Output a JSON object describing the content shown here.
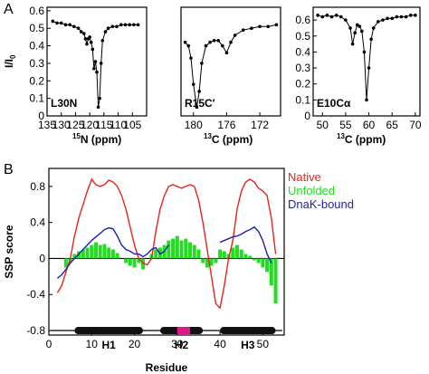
{
  "panels": {
    "a_letter": "A",
    "b_letter": "B"
  },
  "chart_data": [
    {
      "type": "scatter",
      "tag": "L30N",
      "xlabel": "15N (ppm)",
      "ylabel": "I/I0",
      "xlim": [
        135,
        100
      ],
      "ylim": [
        0,
        0.62
      ],
      "xticks": [
        105,
        110,
        115,
        120,
        125,
        130,
        135
      ],
      "xtick_labels": [
        "105",
        "110",
        "115",
        "120",
        "125",
        "130",
        "135"
      ],
      "yticks": [
        0,
        0.1,
        0.2,
        0.3,
        0.4,
        0.5,
        0.6
      ],
      "ytick_labels": [
        "0",
        "0.1",
        "0.2",
        "0.3",
        "0.4",
        "0.5",
        "0.6"
      ],
      "series": [
        {
          "x": [
            103,
            104.5,
            106,
            107.5,
            109,
            110.5,
            112,
            113.5,
            114.5,
            115.5,
            116,
            116.5,
            117,
            117.5,
            118,
            118.5,
            119,
            119.5,
            120,
            120.5,
            121,
            121.5,
            122,
            123,
            124,
            125.5,
            127,
            128.5,
            130,
            131.5,
            133
          ],
          "y": [
            0.52,
            0.52,
            0.52,
            0.52,
            0.52,
            0.51,
            0.51,
            0.5,
            0.48,
            0.43,
            0.3,
            0.1,
            0.05,
            0.25,
            0.31,
            0.27,
            0.38,
            0.42,
            0.45,
            0.44,
            0.41,
            0.44,
            0.47,
            0.48,
            0.5,
            0.51,
            0.52,
            0.52,
            0.53,
            0.53,
            0.54
          ]
        }
      ]
    },
    {
      "type": "scatter",
      "tag": "R15C′",
      "xlabel": "13C (ppm)",
      "ylabel": "",
      "xlim": [
        181.5,
        169.5
      ],
      "ylim": [
        0,
        0.62
      ],
      "xticks": [
        172,
        176,
        180
      ],
      "xtick_labels": [
        "172",
        "176",
        "180"
      ],
      "series": [
        {
          "x": [
            170,
            171,
            172,
            173,
            174,
            175,
            175.5,
            176,
            176.5,
            177,
            177.5,
            178,
            178.5,
            179,
            179.3,
            179.6,
            180,
            180.3,
            180.6,
            181
          ],
          "y": [
            0.52,
            0.51,
            0.51,
            0.5,
            0.49,
            0.46,
            0.42,
            0.36,
            0.4,
            0.43,
            0.43,
            0.42,
            0.4,
            0.3,
            0.14,
            0.05,
            0.18,
            0.33,
            0.4,
            0.42
          ]
        }
      ]
    },
    {
      "type": "scatter",
      "tag": "E10Cα",
      "xlabel": "13C (ppm)",
      "ylabel": "",
      "xlim": [
        48,
        71
      ],
      "ylim": [
        0,
        0.68
      ],
      "xticks": [
        50,
        55,
        60,
        65,
        70
      ],
      "xtick_labels": [
        "50",
        "55",
        "60",
        "65",
        "70"
      ],
      "yticks": [
        0,
        0.1,
        0.2,
        0.3,
        0.4,
        0.5,
        0.6
      ],
      "ytick_labels": [
        "0",
        "0.1",
        "0.2",
        "0.3",
        "0.4",
        "0.5",
        "0.6"
      ],
      "series": [
        {
          "x": [
            49,
            50,
            51,
            52,
            53,
            54,
            55,
            56,
            56.5,
            57,
            57.5,
            58,
            58.5,
            59,
            59.5,
            60,
            60.5,
            61,
            62,
            63,
            64,
            65,
            66,
            67,
            68,
            69,
            70
          ],
          "y": [
            0.63,
            0.62,
            0.63,
            0.62,
            0.63,
            0.62,
            0.6,
            0.55,
            0.45,
            0.52,
            0.57,
            0.56,
            0.53,
            0.4,
            0.1,
            0.3,
            0.48,
            0.55,
            0.59,
            0.6,
            0.61,
            0.61,
            0.62,
            0.62,
            0.62,
            0.63,
            0.63
          ]
        }
      ]
    },
    {
      "type": "bar",
      "xlabel": "Residue",
      "ylabel": "SSP score",
      "xlim": [
        0,
        55
      ],
      "ylim": [
        -0.85,
        1.0
      ],
      "xticks": [
        0,
        10,
        20,
        30,
        40,
        50
      ],
      "xtick_labels": [
        "0",
        "10",
        "20",
        "30",
        "40",
        "50"
      ],
      "yticks": [
        -0.8,
        -0.4,
        0,
        0.4,
        0.8
      ],
      "ytick_labels": [
        "-0.8",
        "-0.4",
        "0",
        "0.4",
        "0.8"
      ],
      "legend": [
        "Native",
        "Unfolded",
        "DnaK-bound"
      ],
      "legend_position": "top-right",
      "colors": {
        "native": "#e8231c",
        "unfolded": "#22dd22",
        "dnak": "#1f1faa",
        "helix": "#111111",
        "highlight": "#e0178a"
      },
      "series": [
        {
          "name": "Native",
          "type": "line",
          "x": [
            2,
            3,
            4,
            5,
            6,
            7,
            8,
            9,
            10,
            11,
            12,
            13,
            14,
            15,
            16,
            17,
            18,
            19,
            20,
            21,
            22,
            23,
            24,
            25,
            26,
            27,
            28,
            29,
            30,
            31,
            32,
            33,
            34,
            35,
            36,
            37,
            38,
            39,
            40,
            41,
            42,
            43,
            44,
            45,
            46,
            47,
            48,
            49,
            50,
            51,
            52,
            53
          ],
          "y": [
            -0.38,
            -0.3,
            -0.15,
            0.0,
            0.25,
            0.45,
            0.6,
            0.75,
            0.88,
            0.82,
            0.8,
            0.82,
            0.87,
            0.85,
            0.8,
            0.7,
            0.55,
            0.35,
            0.15,
            0.0,
            -0.05,
            -0.07,
            0.0,
            0.3,
            0.55,
            0.7,
            0.8,
            0.82,
            0.8,
            0.78,
            0.8,
            0.82,
            0.8,
            0.65,
            0.4,
            0.1,
            -0.2,
            -0.5,
            -0.55,
            -0.3,
            0.0,
            0.2,
            0.55,
            0.75,
            0.85,
            0.88,
            0.85,
            0.78,
            0.75,
            0.7,
            0.45,
            0.05
          ]
        },
        {
          "name": "Unfolded",
          "type": "bar",
          "x": [
            4,
            5,
            6,
            7,
            8,
            9,
            10,
            11,
            12,
            13,
            14,
            15,
            16,
            17,
            18,
            19,
            20,
            21,
            22,
            23,
            24,
            25,
            26,
            27,
            28,
            29,
            30,
            31,
            32,
            33,
            34,
            35,
            36,
            37,
            38,
            39,
            40,
            41,
            42,
            43,
            44,
            45,
            46,
            47,
            48,
            49,
            50,
            51,
            52,
            53
          ],
          "values": [
            -0.1,
            -0.05,
            0.05,
            0.08,
            0.1,
            0.12,
            0.15,
            0.18,
            0.15,
            0.16,
            0.12,
            0.1,
            0.06,
            0.0,
            -0.05,
            -0.08,
            -0.1,
            -0.05,
            -0.12,
            0.0,
            0.05,
            0.1,
            0.12,
            0.15,
            0.2,
            0.22,
            0.25,
            0.2,
            0.22,
            0.18,
            0.15,
            0.1,
            -0.05,
            -0.1,
            -0.08,
            -0.05,
            0.1,
            0.08,
            0.05,
            0.12,
            0.15,
            0.1,
            0.05,
            0.03,
            -0.02,
            -0.05,
            -0.1,
            -0.15,
            -0.3,
            -0.5
          ]
        },
        {
          "name": "DnaK-bound",
          "type": "line",
          "x": [
            2,
            3,
            4,
            5,
            6,
            7,
            8,
            9,
            10,
            11,
            12,
            13,
            14,
            15,
            16,
            17,
            18,
            19,
            20,
            21,
            22,
            23,
            24,
            25,
            26,
            27,
            28,
            40,
            41,
            42,
            43,
            44,
            45,
            46,
            47,
            48,
            49,
            50,
            51,
            52
          ],
          "y": [
            -0.22,
            -0.18,
            -0.12,
            -0.05,
            0.0,
            0.05,
            0.1,
            0.15,
            0.2,
            0.24,
            0.28,
            0.32,
            0.34,
            0.33,
            0.25,
            0.15,
            0.1,
            0.08,
            0.05,
            0.05,
            0.02,
            0.05,
            0.1,
            0.12,
            0.05,
            0.08,
            0.15,
            0.18,
            0.2,
            0.22,
            0.24,
            0.25,
            0.27,
            0.3,
            0.32,
            0.35,
            0.3,
            0.2,
            0.05,
            -0.05
          ]
        }
      ],
      "helices": [
        {
          "label": "H1",
          "start": 6,
          "end": 22
        },
        {
          "label": "H2",
          "start": 26,
          "end": 36
        },
        {
          "label": "H3",
          "start": 40,
          "end": 53
        }
      ],
      "highlight_segment": {
        "start": 30,
        "end": 33
      }
    }
  ]
}
